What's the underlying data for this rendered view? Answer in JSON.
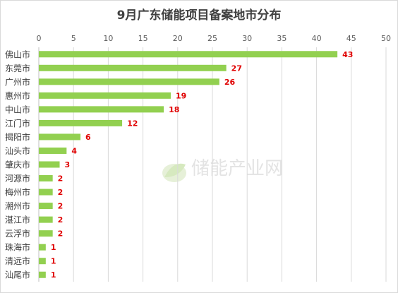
{
  "chart_data": {
    "type": "bar",
    "orientation": "horizontal",
    "title": "9月广东储能项目备案地市分布",
    "xlabel": "",
    "ylabel": "",
    "xlim": [
      0,
      50
    ],
    "xticks": [
      0,
      5,
      10,
      15,
      20,
      25,
      30,
      35,
      40,
      45,
      50
    ],
    "x_axis_position": "top",
    "grid": true,
    "legend": "none",
    "bar_color": "#92d050",
    "label_color": "#e00000",
    "categories": [
      "佛山市",
      "东莞市",
      "广州市",
      "惠州市",
      "中山市",
      "江门市",
      "揭阳市",
      "汕头市",
      "肇庆市",
      "河源市",
      "梅州市",
      "潮州市",
      "湛江市",
      "云浮市",
      "珠海市",
      "清远市",
      "汕尾市"
    ],
    "values": [
      43,
      27,
      26,
      19,
      18,
      12,
      6,
      4,
      3,
      2,
      2,
      2,
      2,
      2,
      1,
      1,
      1
    ]
  },
  "watermark": {
    "text": "储能产业网",
    "icon": "leaf-logo-icon"
  }
}
